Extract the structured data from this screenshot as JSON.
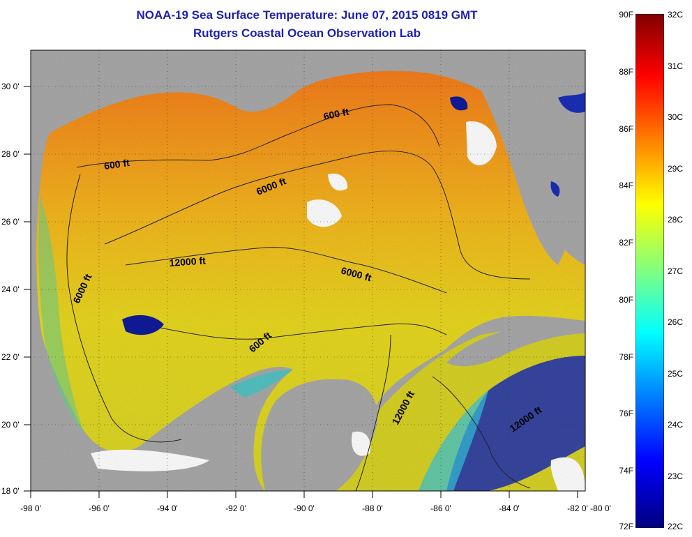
{
  "header": {
    "title": "NOAA-19 Sea Surface Temperature:  June 07, 2015 0819 GMT",
    "subtitle": "Rutgers Coastal Ocean Observation Lab"
  },
  "axes": {
    "x_ticks": [
      "-98 0'",
      "-96 0'",
      "-94 0'",
      "-92 0'",
      "-90 0'",
      "-88 0'",
      "-86 0'",
      "-84 0'",
      "-82 0'",
      "-80 0'"
    ],
    "y_ticks": [
      "30 0'",
      "28 0'",
      "26 0'",
      "24 0'",
      "22 0'",
      "20 0'",
      "18 0'"
    ]
  },
  "contour_labels": [
    "600 ft",
    "600 ft",
    "6000 ft",
    "12000 ft",
    "6000 ft",
    "6000 ft",
    "600 ft",
    "12000 ft",
    "12000 ft"
  ],
  "colorbar": {
    "fahrenheit": [
      "90F",
      "88F",
      "86F",
      "84F",
      "82F",
      "80F",
      "78F",
      "76F",
      "74F",
      "72F"
    ],
    "celsius": [
      "32C",
      "31C",
      "30C",
      "29C",
      "28C",
      "27C",
      "26C",
      "25C",
      "24C",
      "23C",
      "22C"
    ]
  },
  "colors": {
    "land": "#a9a9a9",
    "title": "#1d1fb0",
    "warm": "#f07a1a",
    "cold": "#0a1a8c"
  }
}
